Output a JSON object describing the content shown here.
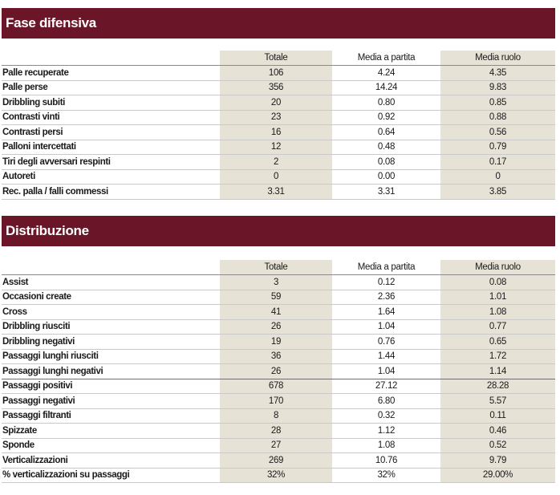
{
  "sections": [
    {
      "title": "Fase difensiva",
      "headers": [
        "Totale",
        "Media a partita",
        "Media ruolo"
      ],
      "rows": [
        {
          "label": "Palle recuperate",
          "values": [
            "106",
            "4.24",
            "4.35"
          ]
        },
        {
          "label": "Palle perse",
          "values": [
            "356",
            "14.24",
            "9.83"
          ]
        },
        {
          "label": "Dribbling subiti",
          "values": [
            "20",
            "0.80",
            "0.85"
          ]
        },
        {
          "label": "Contrasti vinti",
          "values": [
            "23",
            "0.92",
            "0.88"
          ]
        },
        {
          "label": "Contrasti persi",
          "values": [
            "16",
            "0.64",
            "0.56"
          ]
        },
        {
          "label": "Palloni intercettati",
          "values": [
            "12",
            "0.48",
            "0.79"
          ]
        },
        {
          "label": "Tiri degli avversari respinti",
          "values": [
            "2",
            "0.08",
            "0.17"
          ]
        },
        {
          "label": "Autoreti",
          "values": [
            "0",
            "0.00",
            "0"
          ]
        },
        {
          "label": "Rec. palla / falli commessi",
          "values": [
            "3.31",
            "3.31",
            "3.85"
          ]
        }
      ]
    },
    {
      "title": "Distribuzione",
      "headers": [
        "Totale",
        "Media a partita",
        "Media ruolo"
      ],
      "rows": [
        {
          "label": "Assist",
          "values": [
            "3",
            "0.12",
            "0.08"
          ]
        },
        {
          "label": "Occasioni create",
          "values": [
            "59",
            "2.36",
            "1.01"
          ]
        },
        {
          "label": "Cross",
          "values": [
            "41",
            "1.64",
            "1.08"
          ]
        },
        {
          "label": "Dribbling riusciti",
          "values": [
            "26",
            "1.04",
            "0.77"
          ]
        },
        {
          "label": "Dribbling negativi",
          "values": [
            "19",
            "0.76",
            "0.65"
          ]
        },
        {
          "label": "Passaggi lunghi riusciti",
          "values": [
            "36",
            "1.44",
            "1.72"
          ]
        },
        {
          "label": "Passaggi lunghi negativi",
          "values": [
            "26",
            "1.04",
            "1.14"
          ]
        },
        {
          "label": "Passaggi positivi",
          "values": [
            "678",
            "27.12",
            "28.28"
          ]
        },
        {
          "label": "Passaggi negativi",
          "values": [
            "170",
            "6.80",
            "5.57"
          ]
        },
        {
          "label": "Passaggi filtranti",
          "values": [
            "8",
            "0.32",
            "0.11"
          ]
        },
        {
          "label": "Spizzate",
          "values": [
            "28",
            "1.12",
            "0.46"
          ]
        },
        {
          "label": "Sponde",
          "values": [
            "27",
            "1.08",
            "0.52"
          ]
        },
        {
          "label": "Verticalizzazioni",
          "values": [
            "269",
            "10.76",
            "9.79"
          ]
        },
        {
          "label": "% verticalizzazioni su passaggi",
          "values": [
            "32%",
            "32%",
            "29.00%"
          ]
        }
      ]
    }
  ],
  "colors": {
    "banner": "#6b1628",
    "shade": "#e6e2d6"
  }
}
